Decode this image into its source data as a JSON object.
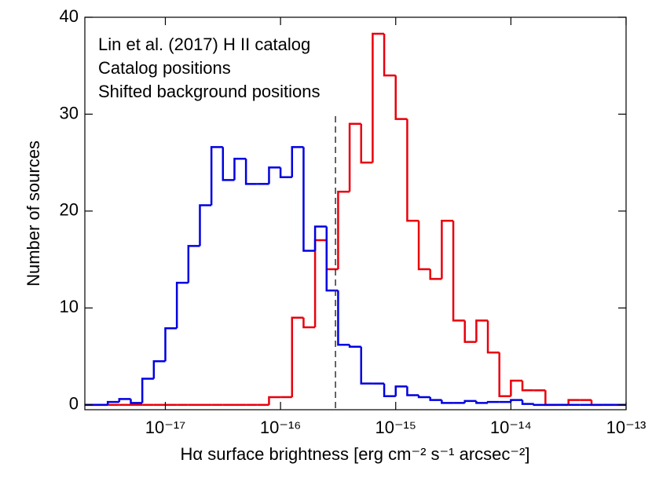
{
  "chart_data": {
    "type": "histogram",
    "legend_title": "Lin et al. (2017) H II catalog",
    "x_label": "Hα surface brightness [erg cm⁻² s⁻¹ arcsec⁻²]",
    "y_label": "Number of sources",
    "x_log": true,
    "xlim": [
      2e-18,
      1e-13
    ],
    "ylim": [
      -0.5,
      40
    ],
    "xticks": [
      {
        "value": 1e-17,
        "label": "10⁻¹⁷"
      },
      {
        "value": 1e-16,
        "label": "10⁻¹⁶"
      },
      {
        "value": 1e-15,
        "label": "10⁻¹⁵"
      },
      {
        "value": 1e-14,
        "label": "10⁻¹⁴"
      },
      {
        "value": 1e-13,
        "label": "10⁻¹³"
      }
    ],
    "yticks": [
      0,
      10,
      20,
      30,
      40
    ],
    "vline": 3e-16,
    "bins": [
      1.995e-18,
      2.512e-18,
      3.162e-18,
      3.981e-18,
      5.012e-18,
      6.31e-18,
      7.943e-18,
      1e-17,
      1.259e-17,
      1.585e-17,
      1.995e-17,
      2.512e-17,
      3.162e-17,
      3.981e-17,
      5.012e-17,
      6.31e-17,
      7.943e-17,
      1e-16,
      1.259e-16,
      1.585e-16,
      1.995e-16,
      2.512e-16,
      3.162e-16,
      3.981e-16,
      5.012e-16,
      6.31e-16,
      7.943e-16,
      1e-15,
      1.259e-15,
      1.585e-15,
      1.995e-15,
      2.512e-15,
      3.162e-15,
      3.981e-15,
      5.012e-15,
      6.31e-15,
      7.943e-15,
      1e-14,
      1.259e-14,
      1.585e-14,
      1.995e-14,
      2.512e-14,
      3.162e-14,
      3.981e-14,
      5.012e-14,
      6.31e-14,
      7.943e-14,
      1e-13
    ],
    "series": [
      {
        "name": "Catalog positions",
        "color": "#e8000b",
        "values": [
          0,
          0,
          0,
          0,
          0,
          0,
          0,
          0,
          0,
          0,
          0,
          0,
          0,
          0,
          0,
          0,
          0.8,
          0.8,
          9,
          8,
          17,
          14,
          22,
          29,
          25,
          38.3,
          34,
          29.5,
          19,
          14,
          13,
          19,
          8.7,
          6.5,
          8.7,
          5.4,
          0.9,
          2.5,
          1.5,
          1.5,
          0,
          0,
          0.5,
          0.5,
          0,
          0,
          0
        ]
      },
      {
        "name": "Shifted background positions",
        "color": "#0000e0",
        "values": [
          0,
          0,
          0.3,
          0.6,
          0.2,
          2.7,
          4.5,
          7.9,
          12.6,
          16.4,
          20.6,
          26.6,
          23.2,
          25.4,
          22.8,
          22.8,
          24.5,
          23.5,
          26.6,
          15.9,
          18.4,
          11.8,
          6.2,
          6.0,
          2.2,
          2.2,
          0.9,
          1.9,
          1.0,
          0.8,
          0.5,
          0.2,
          0.2,
          0.4,
          0.2,
          0.3,
          0.3,
          0.5,
          0.1,
          0,
          0,
          0,
          0,
          0,
          0,
          0,
          0
        ]
      }
    ]
  }
}
